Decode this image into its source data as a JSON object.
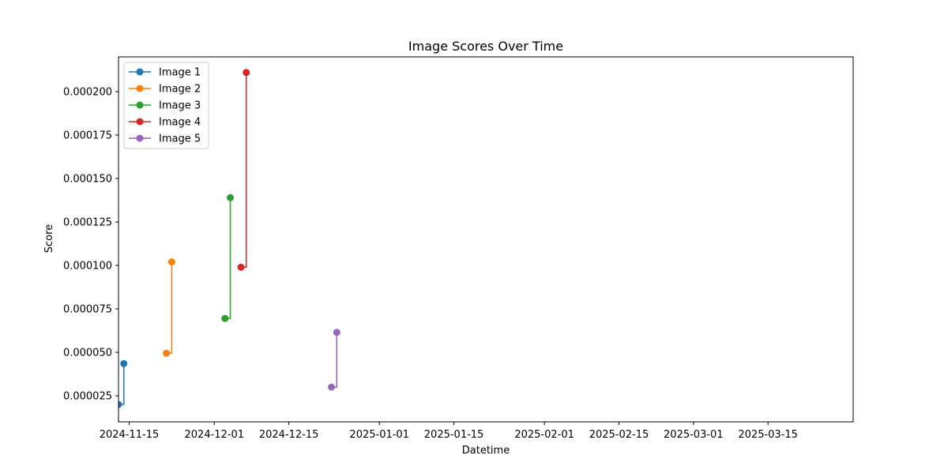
{
  "chart_data": {
    "type": "line",
    "title": "Image Scores Over Time",
    "xlabel": "Datetime",
    "ylabel": "Score",
    "x_is_date": true,
    "xlim": [
      "2024-11-13",
      "2025-03-31"
    ],
    "ylim": [
      1e-05,
      0.00022
    ],
    "x_ticks": [
      "2024-11-15",
      "2024-12-01",
      "2024-12-15",
      "2025-01-01",
      "2025-01-15",
      "2025-02-01",
      "2025-02-15",
      "2025-03-01",
      "2025-03-15"
    ],
    "y_ticks": [
      "0.000025",
      "0.000050",
      "0.000075",
      "0.000100",
      "0.000125",
      "0.000150",
      "0.000175",
      "0.000200"
    ],
    "step": "post",
    "grid": false,
    "legend_position": "upper-left",
    "series": [
      {
        "name": "Image 1",
        "color": "#1f77b4",
        "points": [
          {
            "x": "2024-11-13",
            "y": 2e-05
          },
          {
            "x": "2024-11-14",
            "y": 4.35e-05
          }
        ]
      },
      {
        "name": "Image 2",
        "color": "#ff7f0e",
        "points": [
          {
            "x": "2024-11-22",
            "y": 4.95e-05
          },
          {
            "x": "2024-11-23",
            "y": 0.000102
          }
        ]
      },
      {
        "name": "Image 3",
        "color": "#2ca02c",
        "points": [
          {
            "x": "2024-12-03",
            "y": 6.95e-05
          },
          {
            "x": "2024-12-04",
            "y": 0.000139
          }
        ]
      },
      {
        "name": "Image 4",
        "color": "#d62728",
        "points": [
          {
            "x": "2024-12-06",
            "y": 9.9e-05
          },
          {
            "x": "2024-12-07",
            "y": 0.000211
          }
        ]
      },
      {
        "name": "Image 5",
        "color": "#9467bd",
        "points": [
          {
            "x": "2024-12-23",
            "y": 3e-05
          },
          {
            "x": "2024-12-24",
            "y": 6.15e-05
          }
        ]
      }
    ]
  }
}
